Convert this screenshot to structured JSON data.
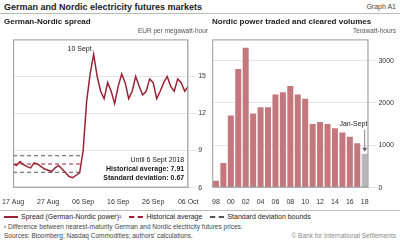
{
  "title": "German and Nordic electricity futures markets",
  "subtitle": "Graph A1",
  "annotations": [
    "¹ Difference between nearest-maturity German and Nordic electricity futures prices.",
    "Sources: Bloomberg; Nasdaq Commodities; authors’ calculations.",
    "© Bank for International Settlements"
  ],
  "chart_data": [
    {
      "type": "line",
      "title": "German-Nordic spread",
      "ylabel": "EUR per megawatt-hour",
      "xlim": [
        0,
        50
      ],
      "xticks": [
        {
          "value": 0,
          "label": "17 Aug"
        },
        {
          "value": 10,
          "label": "27 Aug"
        },
        {
          "value": 20,
          "label": "06 Sep"
        },
        {
          "value": 30,
          "label": "16 Sep"
        },
        {
          "value": 40,
          "label": "26 Sep"
        },
        {
          "value": 50,
          "label": "06 Oct"
        }
      ],
      "ylim": [
        6,
        18
      ],
      "yticks": [
        6,
        9,
        12,
        15
      ],
      "grid": "y",
      "legend": "bottom",
      "annotations": [
        "Until 6 Sept 2018",
        "Historical average: 7.91",
        "Standard deviation: 0.67"
      ],
      "peak_label": "10 Sept",
      "series": [
        {
          "name": "Spread (German-Nordic power)¹",
          "color": "#9b2335",
          "line_style": "solid",
          "x": [
            0,
            1,
            2,
            3,
            4,
            5,
            6,
            7,
            8,
            9,
            10,
            11,
            12,
            13,
            14,
            15,
            16,
            17,
            18,
            19,
            20,
            21,
            22,
            23,
            24,
            25,
            26,
            27,
            28,
            29,
            30,
            31,
            32,
            33,
            34,
            35,
            36,
            37,
            38,
            39,
            40,
            41,
            42,
            43,
            44,
            45,
            46,
            47,
            48,
            49,
            50
          ],
          "values": [
            7.9,
            7.8,
            8.1,
            7.85,
            7.7,
            7.6,
            8.0,
            7.9,
            7.7,
            7.5,
            7.4,
            7.3,
            7.6,
            7.8,
            7.5,
            7.2,
            6.9,
            6.8,
            7.0,
            7.2,
            9.0,
            13.0,
            15.2,
            16.8,
            15.0,
            13.8,
            13.2,
            14.5,
            13.8,
            12.8,
            14.2,
            15.2,
            14.5,
            13.2,
            13.8,
            15.0,
            14.2,
            13.5,
            13.8,
            14.8,
            14.5,
            13.2,
            13.8,
            14.5,
            15.0,
            14.2,
            13.8,
            14.8,
            14.5,
            13.8,
            14.2
          ]
        },
        {
          "name": "Historical average",
          "color": "#9b2335",
          "line_style": "dashed",
          "x": [
            0,
            20
          ],
          "values": [
            7.91,
            7.91
          ]
        },
        {
          "name": "Standard deviation bounds",
          "color": "#555555",
          "line_style": "dashed",
          "x": [
            0,
            20,
            20,
            0,
            20
          ],
          "values": [
            8.58,
            8.58,
            null,
            7.24,
            7.24
          ]
        }
      ]
    },
    {
      "type": "bar",
      "title": "Nordic power traded and cleared volumes",
      "ylabel": "Terawatt-hours",
      "categories": [
        "98",
        null,
        "00",
        null,
        "02",
        null,
        "04",
        null,
        "06",
        null,
        "08",
        null,
        "10",
        null,
        "12",
        null,
        "14",
        null,
        "16",
        null,
        "18"
      ],
      "values": [
        160,
        580,
        1700,
        2800,
        3300,
        1750,
        1900,
        1900,
        2200,
        2250,
        2400,
        2200,
        2100,
        1500,
        1550,
        1500,
        1400,
        1300,
        1200,
        1050,
        800
      ],
      "colors": [
        "#c4787e",
        "#c4787e",
        "#c4787e",
        "#c4787e",
        "#c4787e",
        "#c4787e",
        "#c4787e",
        "#c4787e",
        "#c4787e",
        "#c4787e",
        "#c4787e",
        "#c4787e",
        "#c4787e",
        "#c4787e",
        "#c4787e",
        "#c4787e",
        "#c4787e",
        "#c4787e",
        "#c4787e",
        "#c4787e",
        "#b8b8b8"
      ],
      "ylim": [
        0,
        3500
      ],
      "yticks": [
        0,
        1000,
        2000,
        3000
      ],
      "grid": "y",
      "annotations": [
        "Jan-Sept"
      ]
    }
  ]
}
